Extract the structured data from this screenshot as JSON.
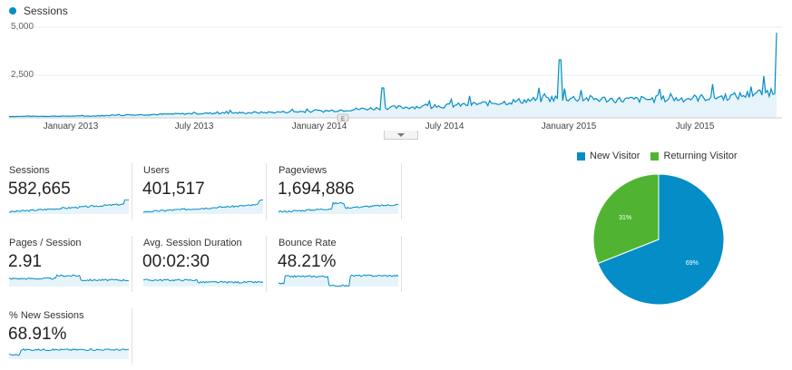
{
  "chart_data": [
    {
      "type": "line",
      "title": "",
      "series": [
        {
          "name": "Sessions"
        }
      ],
      "colors": {
        "line": "#058dc7",
        "fill": "#e6f4fa"
      },
      "y_ticks": [
        "5,000",
        "2,500"
      ],
      "y_tick_values": [
        5000,
        2500
      ],
      "ylim": [
        0,
        5000
      ],
      "x_ticks": [
        "January 2013",
        "July 2013",
        "January 2014",
        "July 2014",
        "January 2015",
        "July 2015"
      ],
      "x_range": [
        "2012-09",
        "2015-12"
      ],
      "approx_monthly_sessions": [
        {
          "month": "2012-09",
          "value": 80
        },
        {
          "month": "2013-01",
          "value": 100
        },
        {
          "month": "2013-04",
          "value": 180
        },
        {
          "month": "2013-07",
          "value": 250
        },
        {
          "month": "2013-10",
          "value": 300
        },
        {
          "month": "2014-01",
          "value": 380
        },
        {
          "month": "2014-04",
          "value": 550
        },
        {
          "month": "2014-07",
          "value": 650
        },
        {
          "month": "2014-10",
          "value": 850
        },
        {
          "month": "2015-01",
          "value": 1100
        },
        {
          "month": "2015-04",
          "value": 1000
        },
        {
          "month": "2015-07",
          "value": 1050
        },
        {
          "month": "2015-10",
          "value": 1200
        },
        {
          "month": "2015-12",
          "value": 1500
        }
      ],
      "notable_peaks": [
        {
          "month": "2014-04",
          "value": 1650
        },
        {
          "month": "2015-01",
          "value": 3200
        },
        {
          "month": "2015-12",
          "value": 4700
        }
      ],
      "annotation_marker": "E"
    },
    {
      "type": "pie",
      "legend": [
        "New Visitor",
        "Returning Visitor"
      ],
      "values": [
        69,
        31
      ],
      "labels": [
        "69%",
        "31%"
      ],
      "colors": [
        "#058dc7",
        "#50b432"
      ]
    }
  ],
  "metrics": [
    {
      "label": "Sessions",
      "value": "582,665"
    },
    {
      "label": "Users",
      "value": "401,517"
    },
    {
      "label": "Pageviews",
      "value": "1,694,886"
    },
    {
      "label": "Pages / Session",
      "value": "2.91"
    },
    {
      "label": "Avg. Session Duration",
      "value": "00:02:30"
    },
    {
      "label": "Bounce Rate",
      "value": "48.21%"
    },
    {
      "label": "% New Sessions",
      "value": "68.91%"
    }
  ]
}
